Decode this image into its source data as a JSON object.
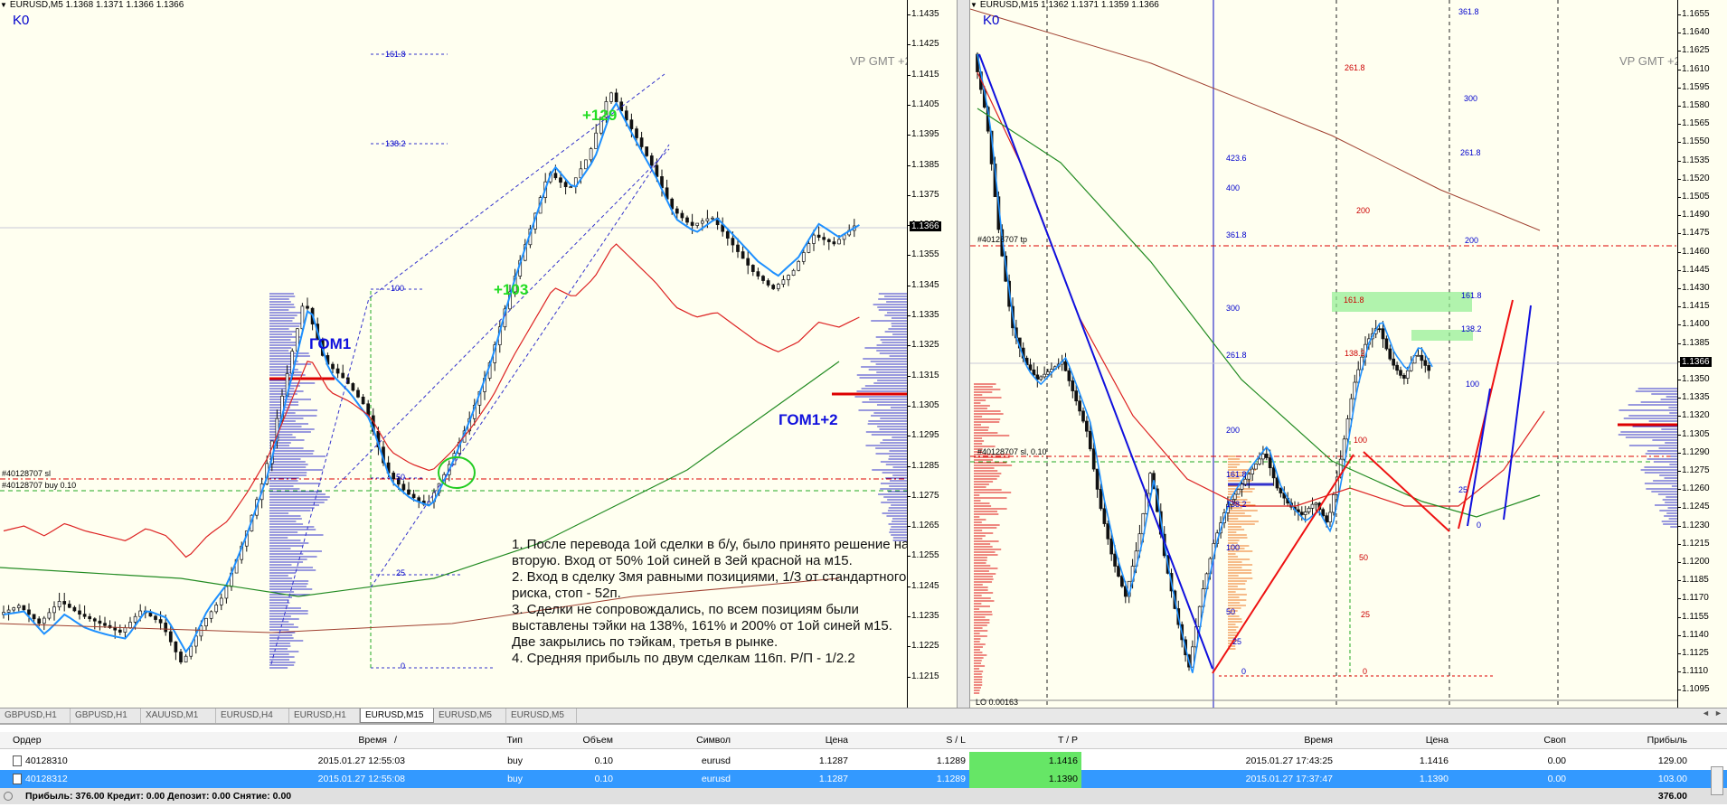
{
  "left_chart": {
    "symbol_line": "EURUSD,M5  1.1368 1.1371 1.1366 1.1366",
    "k0": "K0",
    "vp": "VP GMT +2",
    "price_ticks": [
      "1.1435",
      "1.1425",
      "1.1415",
      "1.1405",
      "1.1395",
      "1.1385",
      "1.1375",
      "1.1365",
      "1.1355",
      "1.1345",
      "1.1335",
      "1.1325",
      "1.1315",
      "1.1305",
      "1.1295",
      "1.1285",
      "1.1275",
      "1.1265",
      "1.1255",
      "1.1245",
      "1.1235",
      "1.1225",
      "1.1215"
    ],
    "current_price": "1.1366",
    "fib_labels": [
      "161.8",
      "138.2",
      "100",
      "50",
      "25",
      "0"
    ],
    "gain1": "+129",
    "gain2": "+103",
    "gom1": "ГОМ1",
    "gom12": "ГОМ1+2",
    "order_sl": "#40128707 sl",
    "order_buy": "#40128707 buy 0.10",
    "note": [
      "1. После перевода 1ой сделки в б/у, было принято решение на вторую. Вход от 50% 1ой синей в 3ей красной на м15.",
      "2. Вход в сделку 3мя равными позициями, 1/3 от стандартного риска, стоп - 52п.",
      "3. Сделки не сопровождались, по всем позициям были выставлены тэйки на 138%, 161% и 200% от 1ой синей м15. Две закрылись по тэйкам, третья в рынке.",
      "4. Средняя прибыль по двум сделкам 116п. Р/П - 1/2.2"
    ]
  },
  "right_chart": {
    "symbol_line": "EURUSD,M15  1.1362 1.1371 1.1359 1.1366",
    "k0": "K0",
    "vp": "VP GMT +2",
    "price_ticks": [
      "1.1655",
      "1.1640",
      "1.1625",
      "1.1610",
      "1.1595",
      "1.1580",
      "1.1565",
      "1.1550",
      "1.1535",
      "1.1520",
      "1.1505",
      "1.1490",
      "1.1475",
      "1.1460",
      "1.1445",
      "1.1430",
      "1.1415",
      "1.1400",
      "1.1385",
      "1.1370",
      "1.1350",
      "1.1335",
      "1.1320",
      "1.1305",
      "1.1290",
      "1.1275",
      "1.1260",
      "1.1245",
      "1.1230",
      "1.1215",
      "1.1200",
      "1.1185",
      "1.1170",
      "1.1155",
      "1.1140",
      "1.1125",
      "1.1110",
      "1.1095"
    ],
    "current_price": "1.1366",
    "order_tp": "#40128707 tp",
    "order_sl": "#40128707 sl, 0.10",
    "fib_blue_a": [
      "423.6",
      "400",
      "361.8",
      "300",
      "261.8",
      "200",
      "161.8",
      "138.2",
      "100",
      "50",
      "25",
      "0"
    ],
    "fib_red": [
      "261.8",
      "200",
      "161.8",
      "138.2",
      "100",
      "50",
      "25",
      "0"
    ],
    "fib_blue_b": [
      "361.8",
      "300",
      "261.8",
      "200",
      "161.8",
      "138.2",
      "100",
      "25",
      "0"
    ],
    "bottom_label": "LO 0.00163"
  },
  "tabs": {
    "items": [
      "GBPUSD,H1",
      "GBPUSD,H1",
      "XAUUSD,M1",
      "EURUSD,H4",
      "EURUSD,H1",
      "EURUSD,M15",
      "EURUSD,M5",
      "EURUSD,M5"
    ],
    "active_index": 5,
    "nav_left": "◄",
    "nav_right": "►"
  },
  "terminal": {
    "headers": {
      "order": "Ордер",
      "time": "Время",
      "sort": "/",
      "type": "Тип",
      "volume": "Объем",
      "symbol": "Символ",
      "price": "Цена",
      "sl": "S / L",
      "tp": "T / P",
      "time2": "Время",
      "price2": "Цена",
      "swap": "Своп",
      "profit": "Прибыль"
    },
    "rows": [
      {
        "order": "40128310",
        "time": "2015.01.27 12:55:03",
        "type": "buy",
        "volume": "0.10",
        "symbol": "eurusd",
        "price": "1.1287",
        "sl": "1.1289",
        "tp": "1.1416",
        "time2": "2015.01.27 17:43:25",
        "price2": "1.1416",
        "swap": "0.00",
        "profit": "129.00"
      },
      {
        "order": "40128312",
        "time": "2015.01.27 12:55:08",
        "type": "buy",
        "volume": "0.10",
        "symbol": "eurusd",
        "price": "1.1287",
        "sl": "1.1289",
        "tp": "1.1390",
        "time2": "2015.01.27 17:37:47",
        "price2": "1.1390",
        "swap": "0.00",
        "profit": "103.00"
      }
    ],
    "summary": "Прибыль: 376.00  Кредит: 0.00  Депозит: 0.00  Снятие: 0.00",
    "total": "376.00"
  },
  "colors": {
    "chart_bg": "#fffff0",
    "ma_blue": "#1e90ff",
    "ma_red": "#dd2222",
    "ma_green": "#228b22",
    "selected_row": "#3399ff",
    "tp_green": "#66e666"
  }
}
